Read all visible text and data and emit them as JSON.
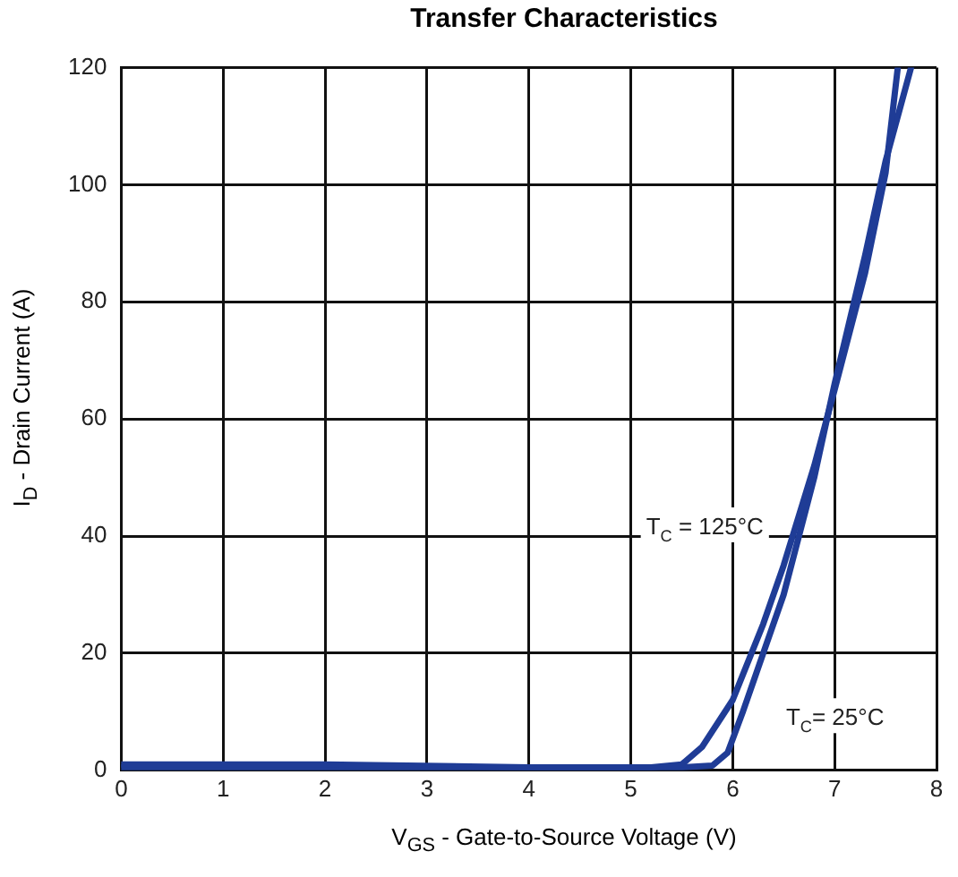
{
  "chart_data": {
    "type": "line",
    "title": "Transfer Characteristics",
    "xlabel": "V$_{GS}$ - Gate-to-Source Voltage (V)",
    "ylabel": "I$_{D}$ - Drain Current (A)",
    "xlim": [
      0,
      8
    ],
    "xticks": [
      0,
      1,
      2,
      3,
      4,
      5,
      6,
      7,
      8
    ],
    "ylim": [
      0,
      120
    ],
    "yticks": [
      0,
      20,
      40,
      60,
      80,
      100,
      120
    ],
    "grid": true,
    "legend": false,
    "marker": "none",
    "line_style": "solid",
    "series": [
      {
        "name": "T$_{C}$ = 125°C",
        "color": "#1f3c96",
        "x": [
          0,
          2,
          4,
          5.2,
          5.5,
          5.7,
          6.0,
          6.3,
          6.5,
          6.8,
          7.0,
          7.3,
          7.5,
          7.62
        ],
        "values": [
          1,
          1,
          0.5,
          0.5,
          1,
          4,
          12,
          25,
          35,
          52,
          65,
          85,
          102,
          120
        ]
      },
      {
        "name": "T$_{C}$= 25°C",
        "color": "#1f3c96",
        "x": [
          0,
          2,
          4,
          5.5,
          5.8,
          5.95,
          6.1,
          6.3,
          6.5,
          6.8,
          7.0,
          7.3,
          7.5,
          7.75
        ],
        "values": [
          0.5,
          0.5,
          0.5,
          0.5,
          0.8,
          3,
          10,
          20,
          30,
          50,
          66,
          88,
          104,
          120
        ]
      }
    ]
  }
}
